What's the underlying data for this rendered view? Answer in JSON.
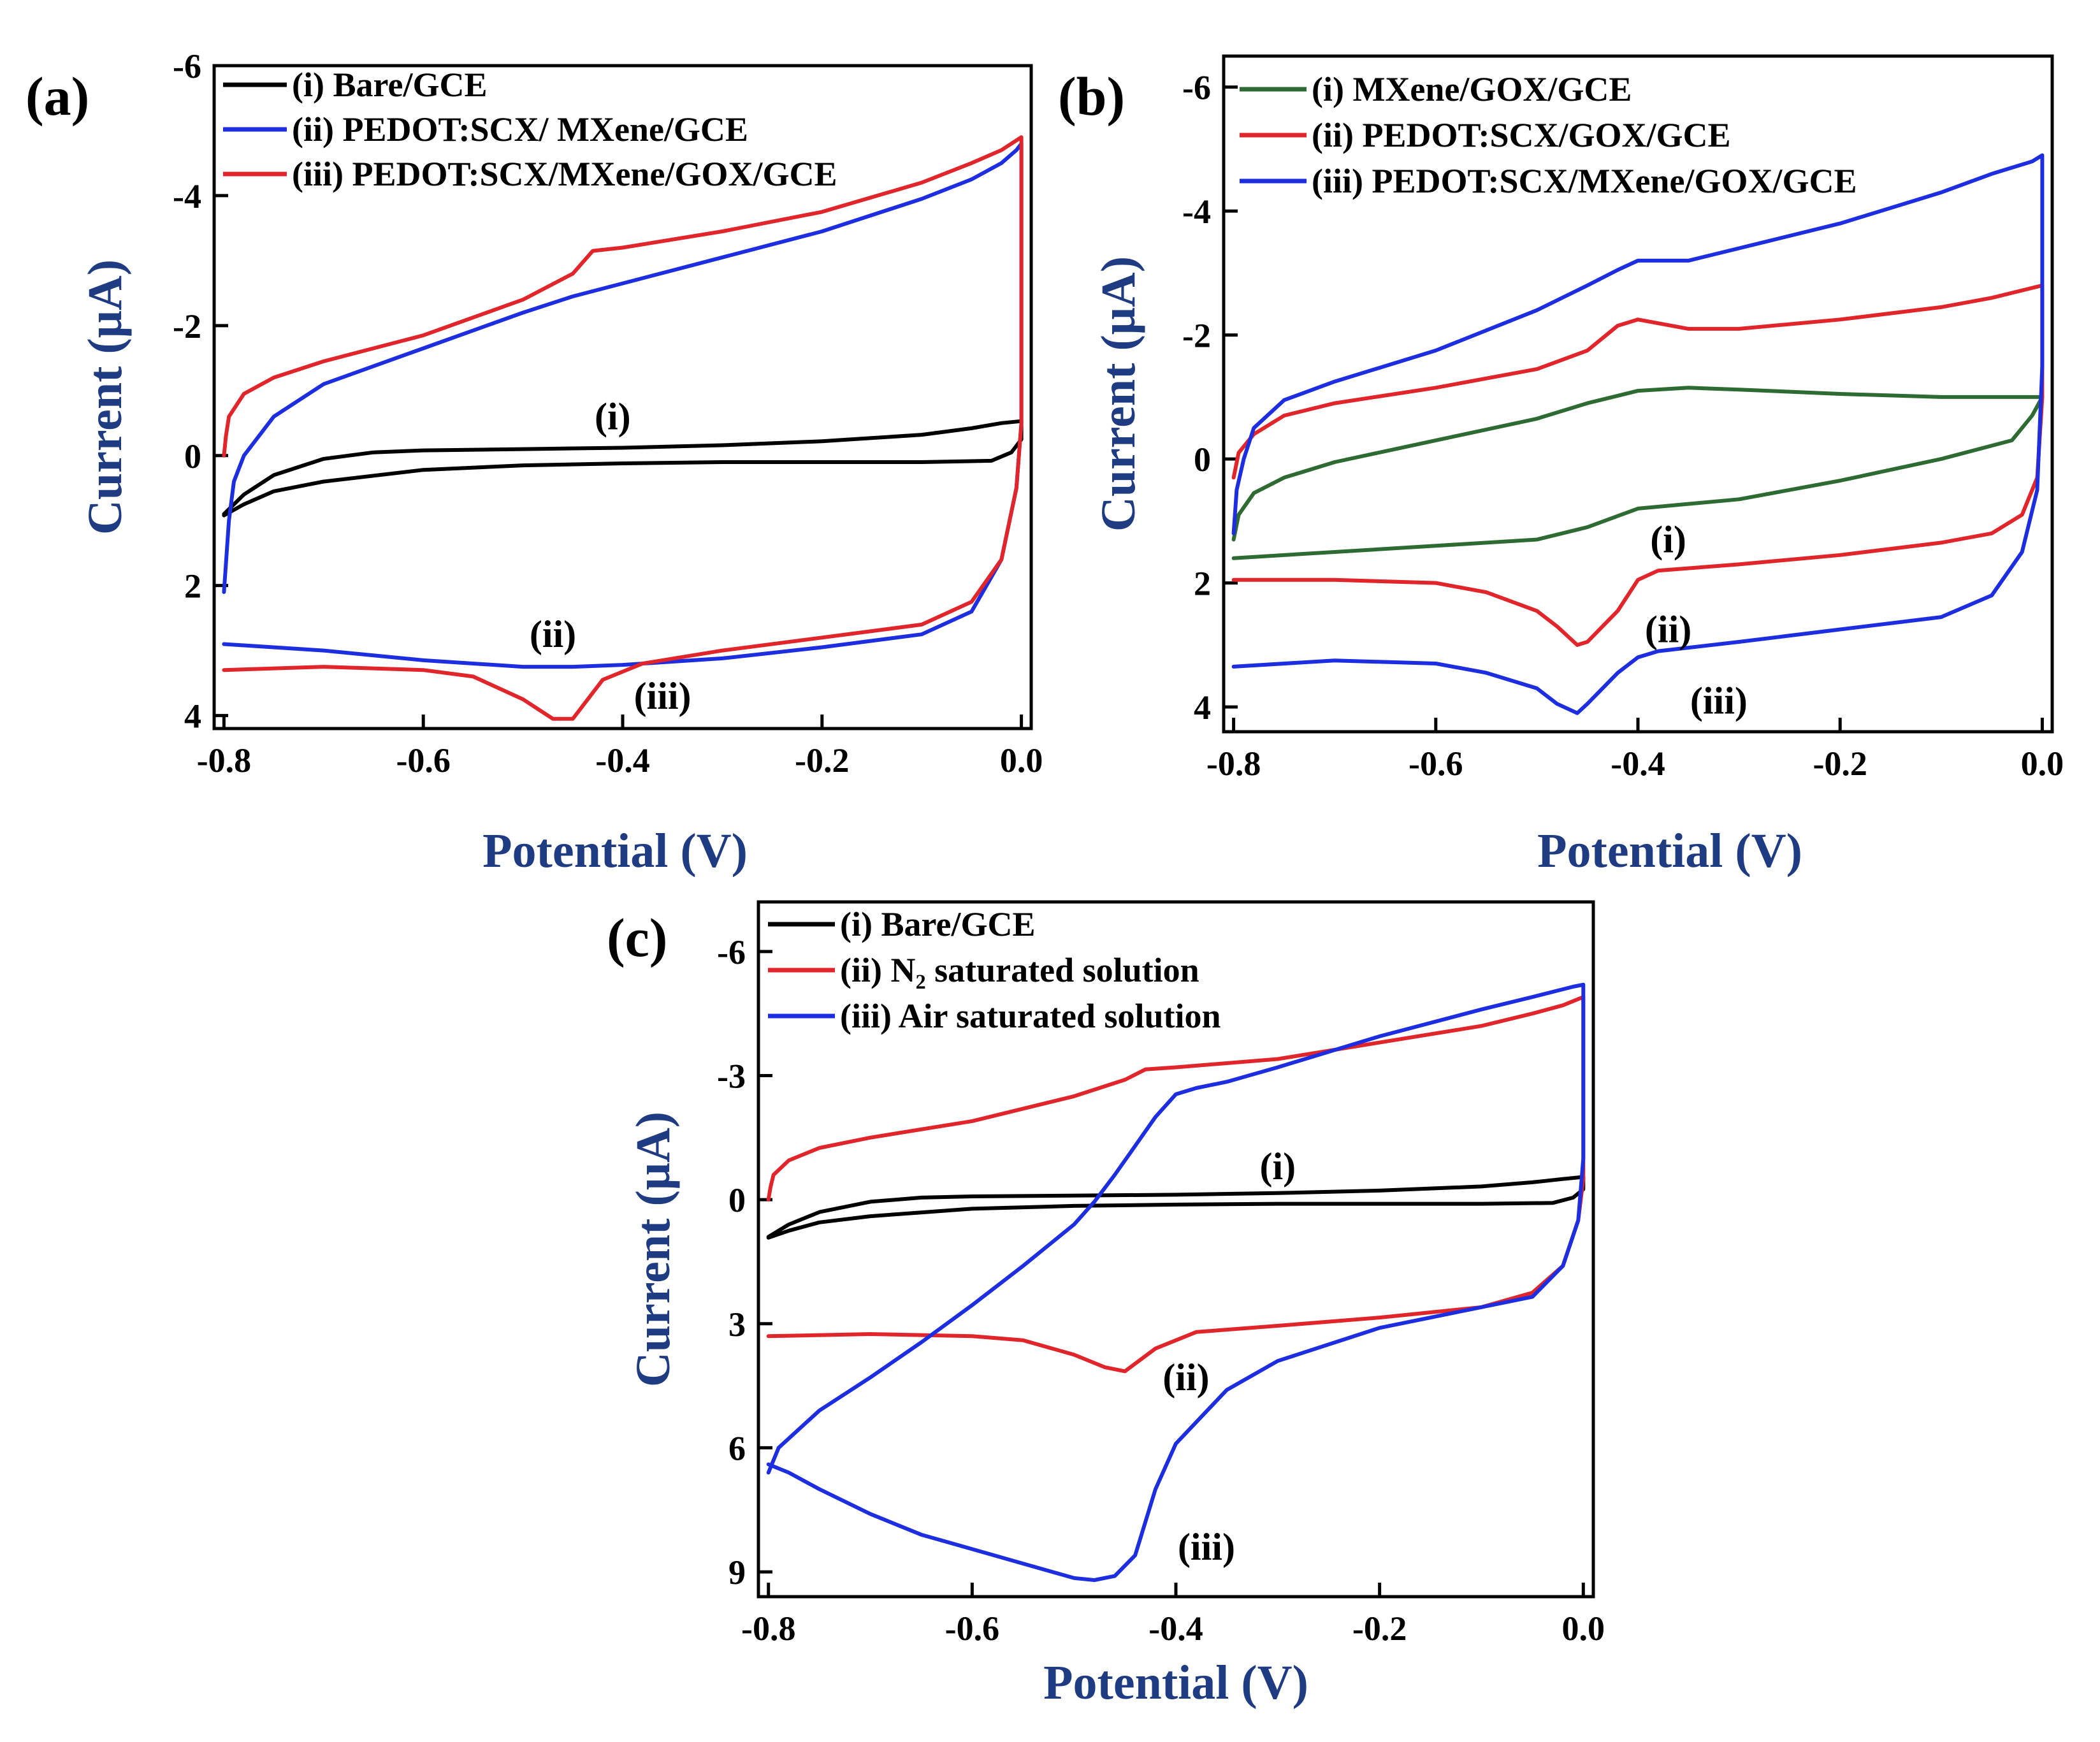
{
  "colors": {
    "black": "#000000",
    "blue": "#1c2ee0",
    "red": "#e0262b",
    "green": "#2e6b33",
    "axis_title": "#1f3b82"
  },
  "chart_data": [
    {
      "id": "a",
      "panel_label": "(a)",
      "type": "line",
      "xlabel": "Potential (V)",
      "ylabel": "Current (μA)",
      "xlim": [
        -0.8,
        0.0
      ],
      "ylim": [
        4.2,
        -6
      ],
      "y_inverted": true,
      "xticks": [
        -0.8,
        -0.6,
        -0.4,
        -0.2,
        0.0
      ],
      "xtick_labels": [
        "-0.8",
        "-0.6",
        "-0.4",
        "-0.2",
        "0.0"
      ],
      "yticks": [
        -6,
        -4,
        -2,
        0,
        2,
        4
      ],
      "ytick_labels": [
        "-6",
        "-4",
        "-2",
        "0",
        "2",
        "4"
      ],
      "legend_position": "top-left",
      "series": [
        {
          "name": "(i)  Bare/GCE",
          "color": "#000000",
          "x": [
            -0.8,
            -0.78,
            -0.75,
            -0.7,
            -0.65,
            -0.6,
            -0.5,
            -0.4,
            -0.3,
            -0.2,
            -0.1,
            -0.05,
            -0.02,
            0.0,
            0.0,
            -0.01,
            -0.03,
            -0.1,
            -0.2,
            -0.3,
            -0.4,
            -0.5,
            -0.6,
            -0.7,
            -0.75,
            -0.78,
            -0.8
          ],
          "y": [
            0.9,
            0.6,
            0.3,
            0.05,
            -0.05,
            -0.08,
            -0.1,
            -0.12,
            -0.16,
            -0.22,
            -0.32,
            -0.42,
            -0.5,
            -0.53,
            -0.25,
            -0.05,
            0.08,
            0.1,
            0.1,
            0.1,
            0.12,
            0.15,
            0.22,
            0.4,
            0.55,
            0.75,
            0.92
          ],
          "annotation": "(i)",
          "annotation_at": [
            -0.41,
            -0.6
          ]
        },
        {
          "name": "(ii)  PEDOT:SCX/ MXene/GCE",
          "color": "#1c2ee0",
          "x": [
            -0.8,
            -0.795,
            -0.79,
            -0.78,
            -0.75,
            -0.7,
            -0.6,
            -0.5,
            -0.45,
            -0.4,
            -0.3,
            -0.2,
            -0.1,
            -0.05,
            -0.02,
            -0.005,
            0.0,
            0.0,
            -0.005,
            -0.02,
            -0.05,
            -0.1,
            -0.2,
            -0.3,
            -0.4,
            -0.45,
            -0.5,
            -0.6,
            -0.7,
            -0.8
          ],
          "y": [
            2.1,
            1.0,
            0.4,
            0.0,
            -0.6,
            -1.1,
            -1.65,
            -2.2,
            -2.45,
            -2.65,
            -3.05,
            -3.45,
            -3.95,
            -4.25,
            -4.5,
            -4.7,
            -4.8,
            -0.5,
            0.5,
            1.6,
            2.4,
            2.75,
            2.95,
            3.12,
            3.22,
            3.25,
            3.25,
            3.15,
            3.0,
            2.9
          ],
          "annotation": "(ii)",
          "annotation_at": [
            -0.47,
            2.75
          ]
        },
        {
          "name": "(iii) PEDOT:SCX/MXene/GOX/GCE",
          "color": "#e0262b",
          "x": [
            -0.8,
            -0.798,
            -0.795,
            -0.78,
            -0.75,
            -0.7,
            -0.6,
            -0.5,
            -0.45,
            -0.43,
            -0.4,
            -0.3,
            -0.2,
            -0.1,
            -0.05,
            -0.02,
            0.0,
            0.0,
            -0.005,
            -0.02,
            -0.05,
            -0.1,
            -0.2,
            -0.3,
            -0.38,
            -0.42,
            -0.45,
            -0.47,
            -0.5,
            -0.55,
            -0.6,
            -0.7,
            -0.8
          ],
          "y": [
            0.0,
            -0.3,
            -0.6,
            -0.95,
            -1.2,
            -1.45,
            -1.85,
            -2.4,
            -2.8,
            -3.15,
            -3.2,
            -3.45,
            -3.75,
            -4.2,
            -4.5,
            -4.7,
            -4.9,
            -0.5,
            0.5,
            1.6,
            2.25,
            2.6,
            2.8,
            3.0,
            3.2,
            3.45,
            4.05,
            4.05,
            3.75,
            3.4,
            3.3,
            3.25,
            3.3
          ],
          "annotation": "(iii)",
          "annotation_at": [
            -0.36,
            3.7
          ]
        }
      ]
    },
    {
      "id": "b",
      "panel_label": "(b)",
      "type": "line",
      "xlabel": "Potential (V)",
      "ylabel": "Current (μA)",
      "xlim": [
        -0.8,
        0.0
      ],
      "ylim": [
        4.4,
        -6.5
      ],
      "y_inverted": true,
      "xticks": [
        -0.8,
        -0.6,
        -0.4,
        -0.2,
        0.0
      ],
      "xtick_labels": [
        "-0.8",
        "-0.6",
        "-0.4",
        "-0.2",
        "0.0"
      ],
      "yticks": [
        -6,
        -4,
        -2,
        0,
        2,
        4
      ],
      "ytick_labels": [
        "-6",
        "-4",
        "-2",
        "0",
        "2",
        "4"
      ],
      "legend_position": "top-left",
      "series": [
        {
          "name": "(i)  MXene/GOX/GCE",
          "color": "#2e6b33",
          "x": [
            -0.8,
            -0.795,
            -0.78,
            -0.75,
            -0.7,
            -0.6,
            -0.5,
            -0.45,
            -0.4,
            -0.35,
            -0.3,
            -0.2,
            -0.1,
            -0.05,
            0.0,
            0.0,
            -0.01,
            -0.03,
            -0.1,
            -0.2,
            -0.3,
            -0.4,
            -0.45,
            -0.5,
            -0.6,
            -0.7,
            -0.8
          ],
          "y": [
            1.3,
            0.9,
            0.55,
            0.3,
            0.05,
            -0.3,
            -0.65,
            -0.9,
            -1.1,
            -1.15,
            -1.12,
            -1.05,
            -1.0,
            -1.0,
            -1.0,
            -1.0,
            -0.7,
            -0.3,
            0.0,
            0.35,
            0.65,
            0.8,
            1.1,
            1.3,
            1.4,
            1.5,
            1.6
          ],
          "annotation": "(i)",
          "annotation_at": [
            -0.37,
            1.3
          ]
        },
        {
          "name": "(ii)  PEDOT:SCX/GOX/GCE",
          "color": "#e0262b",
          "x": [
            -0.8,
            -0.795,
            -0.78,
            -0.75,
            -0.7,
            -0.6,
            -0.5,
            -0.45,
            -0.42,
            -0.4,
            -0.35,
            -0.3,
            -0.2,
            -0.1,
            -0.05,
            0.0,
            0.0,
            -0.005,
            -0.02,
            -0.05,
            -0.1,
            -0.2,
            -0.3,
            -0.38,
            -0.4,
            -0.42,
            -0.45,
            -0.46,
            -0.48,
            -0.5,
            -0.55,
            -0.6,
            -0.7,
            -0.8
          ],
          "y": [
            0.3,
            -0.1,
            -0.4,
            -0.7,
            -0.9,
            -1.15,
            -1.45,
            -1.75,
            -2.15,
            -2.25,
            -2.1,
            -2.1,
            -2.25,
            -2.45,
            -2.6,
            -2.8,
            -1.0,
            0.3,
            0.9,
            1.2,
            1.35,
            1.55,
            1.7,
            1.8,
            1.95,
            2.45,
            2.95,
            3.0,
            2.7,
            2.45,
            2.15,
            2.0,
            1.95,
            1.95
          ],
          "annotation": "(ii)",
          "annotation_at": [
            -0.37,
            2.75
          ]
        },
        {
          "name": "(iii) PEDOT:SCX/MXene/GOX/GCE",
          "color": "#1c2ee0",
          "x": [
            -0.8,
            -0.797,
            -0.79,
            -0.78,
            -0.75,
            -0.7,
            -0.6,
            -0.5,
            -0.45,
            -0.42,
            -0.4,
            -0.38,
            -0.35,
            -0.3,
            -0.2,
            -0.1,
            -0.05,
            -0.01,
            0.0,
            0.0,
            -0.005,
            -0.02,
            -0.05,
            -0.1,
            -0.2,
            -0.3,
            -0.38,
            -0.4,
            -0.42,
            -0.45,
            -0.46,
            -0.48,
            -0.5,
            -0.55,
            -0.6,
            -0.7,
            -0.8
          ],
          "y": [
            1.2,
            0.5,
            0.0,
            -0.5,
            -0.95,
            -1.25,
            -1.75,
            -2.4,
            -2.8,
            -3.05,
            -3.2,
            -3.2,
            -3.2,
            -3.4,
            -3.8,
            -4.3,
            -4.6,
            -4.8,
            -4.9,
            -1.5,
            0.5,
            1.5,
            2.2,
            2.55,
            2.75,
            2.95,
            3.1,
            3.2,
            3.45,
            3.95,
            4.1,
            3.95,
            3.7,
            3.45,
            3.3,
            3.25,
            3.35
          ],
          "annotation": "(iii)",
          "annotation_at": [
            -0.32,
            3.9
          ]
        }
      ]
    },
    {
      "id": "c",
      "panel_label": "(c)",
      "type": "line",
      "xlabel": "Potential (V)",
      "ylabel": "Current (μA)",
      "xlim": [
        -0.8,
        0.0
      ],
      "ylim": [
        9.6,
        -7.2
      ],
      "y_inverted": true,
      "xticks": [
        -0.8,
        -0.6,
        -0.4,
        -0.2,
        0.0
      ],
      "xtick_labels": [
        "-0.8",
        "-0.6",
        "-0.4",
        "-0.2",
        "0.0"
      ],
      "yticks": [
        -6,
        -3,
        0,
        3,
        6,
        9
      ],
      "ytick_labels": [
        "-6",
        "-3",
        "0",
        "3",
        "6",
        "9"
      ],
      "legend_position": "top-left",
      "series": [
        {
          "name": "(i)  Bare/GCE",
          "color": "#000000",
          "x": [
            -0.8,
            -0.78,
            -0.75,
            -0.7,
            -0.65,
            -0.6,
            -0.5,
            -0.4,
            -0.3,
            -0.2,
            -0.1,
            -0.05,
            -0.02,
            0.0,
            0.0,
            -0.01,
            -0.03,
            -0.1,
            -0.2,
            -0.3,
            -0.4,
            -0.5,
            -0.6,
            -0.7,
            -0.75,
            -0.78,
            -0.8
          ],
          "y": [
            0.9,
            0.6,
            0.3,
            0.05,
            -0.05,
            -0.08,
            -0.1,
            -0.12,
            -0.16,
            -0.22,
            -0.32,
            -0.42,
            -0.5,
            -0.55,
            -0.25,
            -0.05,
            0.08,
            0.1,
            0.1,
            0.1,
            0.12,
            0.15,
            0.22,
            0.4,
            0.55,
            0.75,
            0.92
          ],
          "annotation": "(i)",
          "annotation_at": [
            -0.3,
            -0.8
          ]
        },
        {
          "name": "(ii)  N₂ saturated solution",
          "color": "#e0262b",
          "x": [
            -0.8,
            -0.798,
            -0.795,
            -0.78,
            -0.75,
            -0.7,
            -0.6,
            -0.5,
            -0.45,
            -0.43,
            -0.4,
            -0.3,
            -0.2,
            -0.1,
            -0.05,
            -0.02,
            0.0,
            0.0,
            -0.005,
            -0.02,
            -0.05,
            -0.1,
            -0.2,
            -0.3,
            -0.38,
            -0.42,
            -0.45,
            -0.47,
            -0.5,
            -0.55,
            -0.6,
            -0.7,
            -0.8
          ],
          "y": [
            0.0,
            -0.3,
            -0.6,
            -0.95,
            -1.25,
            -1.5,
            -1.9,
            -2.5,
            -2.9,
            -3.15,
            -3.2,
            -3.4,
            -3.8,
            -4.2,
            -4.5,
            -4.7,
            -4.9,
            -0.5,
            0.5,
            1.6,
            2.25,
            2.6,
            2.85,
            3.05,
            3.2,
            3.6,
            4.15,
            4.05,
            3.75,
            3.4,
            3.3,
            3.25,
            3.3
          ],
          "annotation": "(ii)",
          "annotation_at": [
            -0.39,
            4.3
          ]
        },
        {
          "name": "(iii) Air saturated solution",
          "color": "#1c2ee0",
          "x": [
            -0.8,
            -0.79,
            -0.75,
            -0.7,
            -0.65,
            -0.6,
            -0.55,
            -0.5,
            -0.48,
            -0.46,
            -0.44,
            -0.42,
            -0.4,
            -0.38,
            -0.35,
            -0.3,
            -0.2,
            -0.1,
            -0.05,
            -0.01,
            0.0,
            0.0,
            -0.005,
            -0.02,
            -0.05,
            -0.1,
            -0.2,
            -0.3,
            -0.35,
            -0.4,
            -0.42,
            -0.44,
            -0.46,
            -0.48,
            -0.5,
            -0.55,
            -0.6,
            -0.65,
            -0.7,
            -0.75,
            -0.78,
            -0.8
          ],
          "y": [
            6.6,
            6.0,
            5.1,
            4.3,
            3.45,
            2.55,
            1.6,
            0.6,
            0.05,
            -0.6,
            -1.3,
            -2.0,
            -2.55,
            -2.7,
            -2.85,
            -3.2,
            -3.95,
            -4.6,
            -4.9,
            -5.15,
            -5.2,
            -1.0,
            0.5,
            1.6,
            2.35,
            2.6,
            3.1,
            3.9,
            4.6,
            5.9,
            7.0,
            8.6,
            9.1,
            9.2,
            9.15,
            8.8,
            8.45,
            8.1,
            7.6,
            7.0,
            6.6,
            6.4
          ],
          "annotation": "(iii)",
          "annotation_at": [
            -0.37,
            8.4
          ]
        }
      ]
    }
  ]
}
